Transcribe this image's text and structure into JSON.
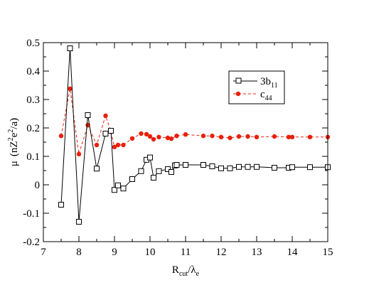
{
  "chart_data": {
    "type": "line",
    "xlabel": {
      "main": "R",
      "sub1": "cut",
      "slash": "/λ",
      "sub2": "e"
    },
    "ylabel": {
      "mu": "μ",
      "open": "(nZ",
      "sup1": "2",
      "e": "e",
      "sup2": "2",
      "close": "/a)"
    },
    "xlim": [
      7,
      15
    ],
    "ylim": [
      -0.2,
      0.5
    ],
    "xticks": [
      7,
      8,
      9,
      10,
      11,
      12,
      13,
      14,
      15
    ],
    "yticks": [
      -0.2,
      -0.1,
      0,
      0.1,
      0.2,
      0.3,
      0.4,
      0.5
    ],
    "xtick_labels": [
      "7",
      "8",
      "9",
      "10",
      "11",
      "12",
      "13",
      "14",
      "15"
    ],
    "ytick_labels": [
      "-0.2",
      "-0.1",
      "0",
      "0.1",
      "0.2",
      "0.3",
      "0.4",
      "0.5"
    ],
    "grid": false,
    "legend_position": "top-right",
    "series": [
      {
        "name_main": "3b",
        "name_sub": "11",
        "color": "#000000",
        "marker": "open-square",
        "line_style": "solid",
        "x": [
          7.5,
          7.75,
          8.0,
          8.25,
          8.5,
          8.75,
          8.9,
          9.0,
          9.1,
          9.25,
          9.5,
          9.75,
          9.9,
          10.0,
          10.1,
          10.25,
          10.5,
          10.6,
          10.7,
          10.75,
          11.0,
          11.5,
          11.75,
          12.0,
          12.25,
          12.5,
          12.75,
          13.0,
          13.5,
          13.9,
          14.0,
          14.5,
          15.0
        ],
        "y": [
          -0.07,
          0.48,
          -0.13,
          0.245,
          0.057,
          0.18,
          0.19,
          -0.018,
          -0.002,
          -0.013,
          0.02,
          0.048,
          0.088,
          0.096,
          0.025,
          0.048,
          0.055,
          0.045,
          0.068,
          0.07,
          0.07,
          0.07,
          0.065,
          0.058,
          0.058,
          0.063,
          0.063,
          0.063,
          0.06,
          0.06,
          0.062,
          0.062,
          0.062
        ]
      },
      {
        "name_main": "c",
        "name_sub": "44",
        "color": "#e8200a",
        "marker": "filled-circle",
        "line_style": "dashed",
        "x": [
          7.5,
          7.75,
          8.0,
          8.25,
          8.5,
          8.75,
          8.9,
          9.0,
          9.1,
          9.25,
          9.5,
          9.75,
          9.9,
          10.0,
          10.1,
          10.25,
          10.5,
          10.6,
          10.75,
          11.0,
          11.5,
          11.75,
          12.0,
          12.25,
          12.5,
          12.75,
          13.0,
          13.5,
          13.9,
          14.0,
          14.5,
          15.0
        ],
        "y": [
          0.172,
          0.338,
          0.108,
          0.21,
          0.14,
          0.243,
          0.188,
          0.133,
          0.14,
          0.14,
          0.163,
          0.18,
          0.178,
          0.17,
          0.16,
          0.168,
          0.165,
          0.162,
          0.172,
          0.177,
          0.172,
          0.172,
          0.168,
          0.165,
          0.17,
          0.17,
          0.168,
          0.17,
          0.168,
          0.168,
          0.168,
          0.168
        ]
      }
    ]
  }
}
